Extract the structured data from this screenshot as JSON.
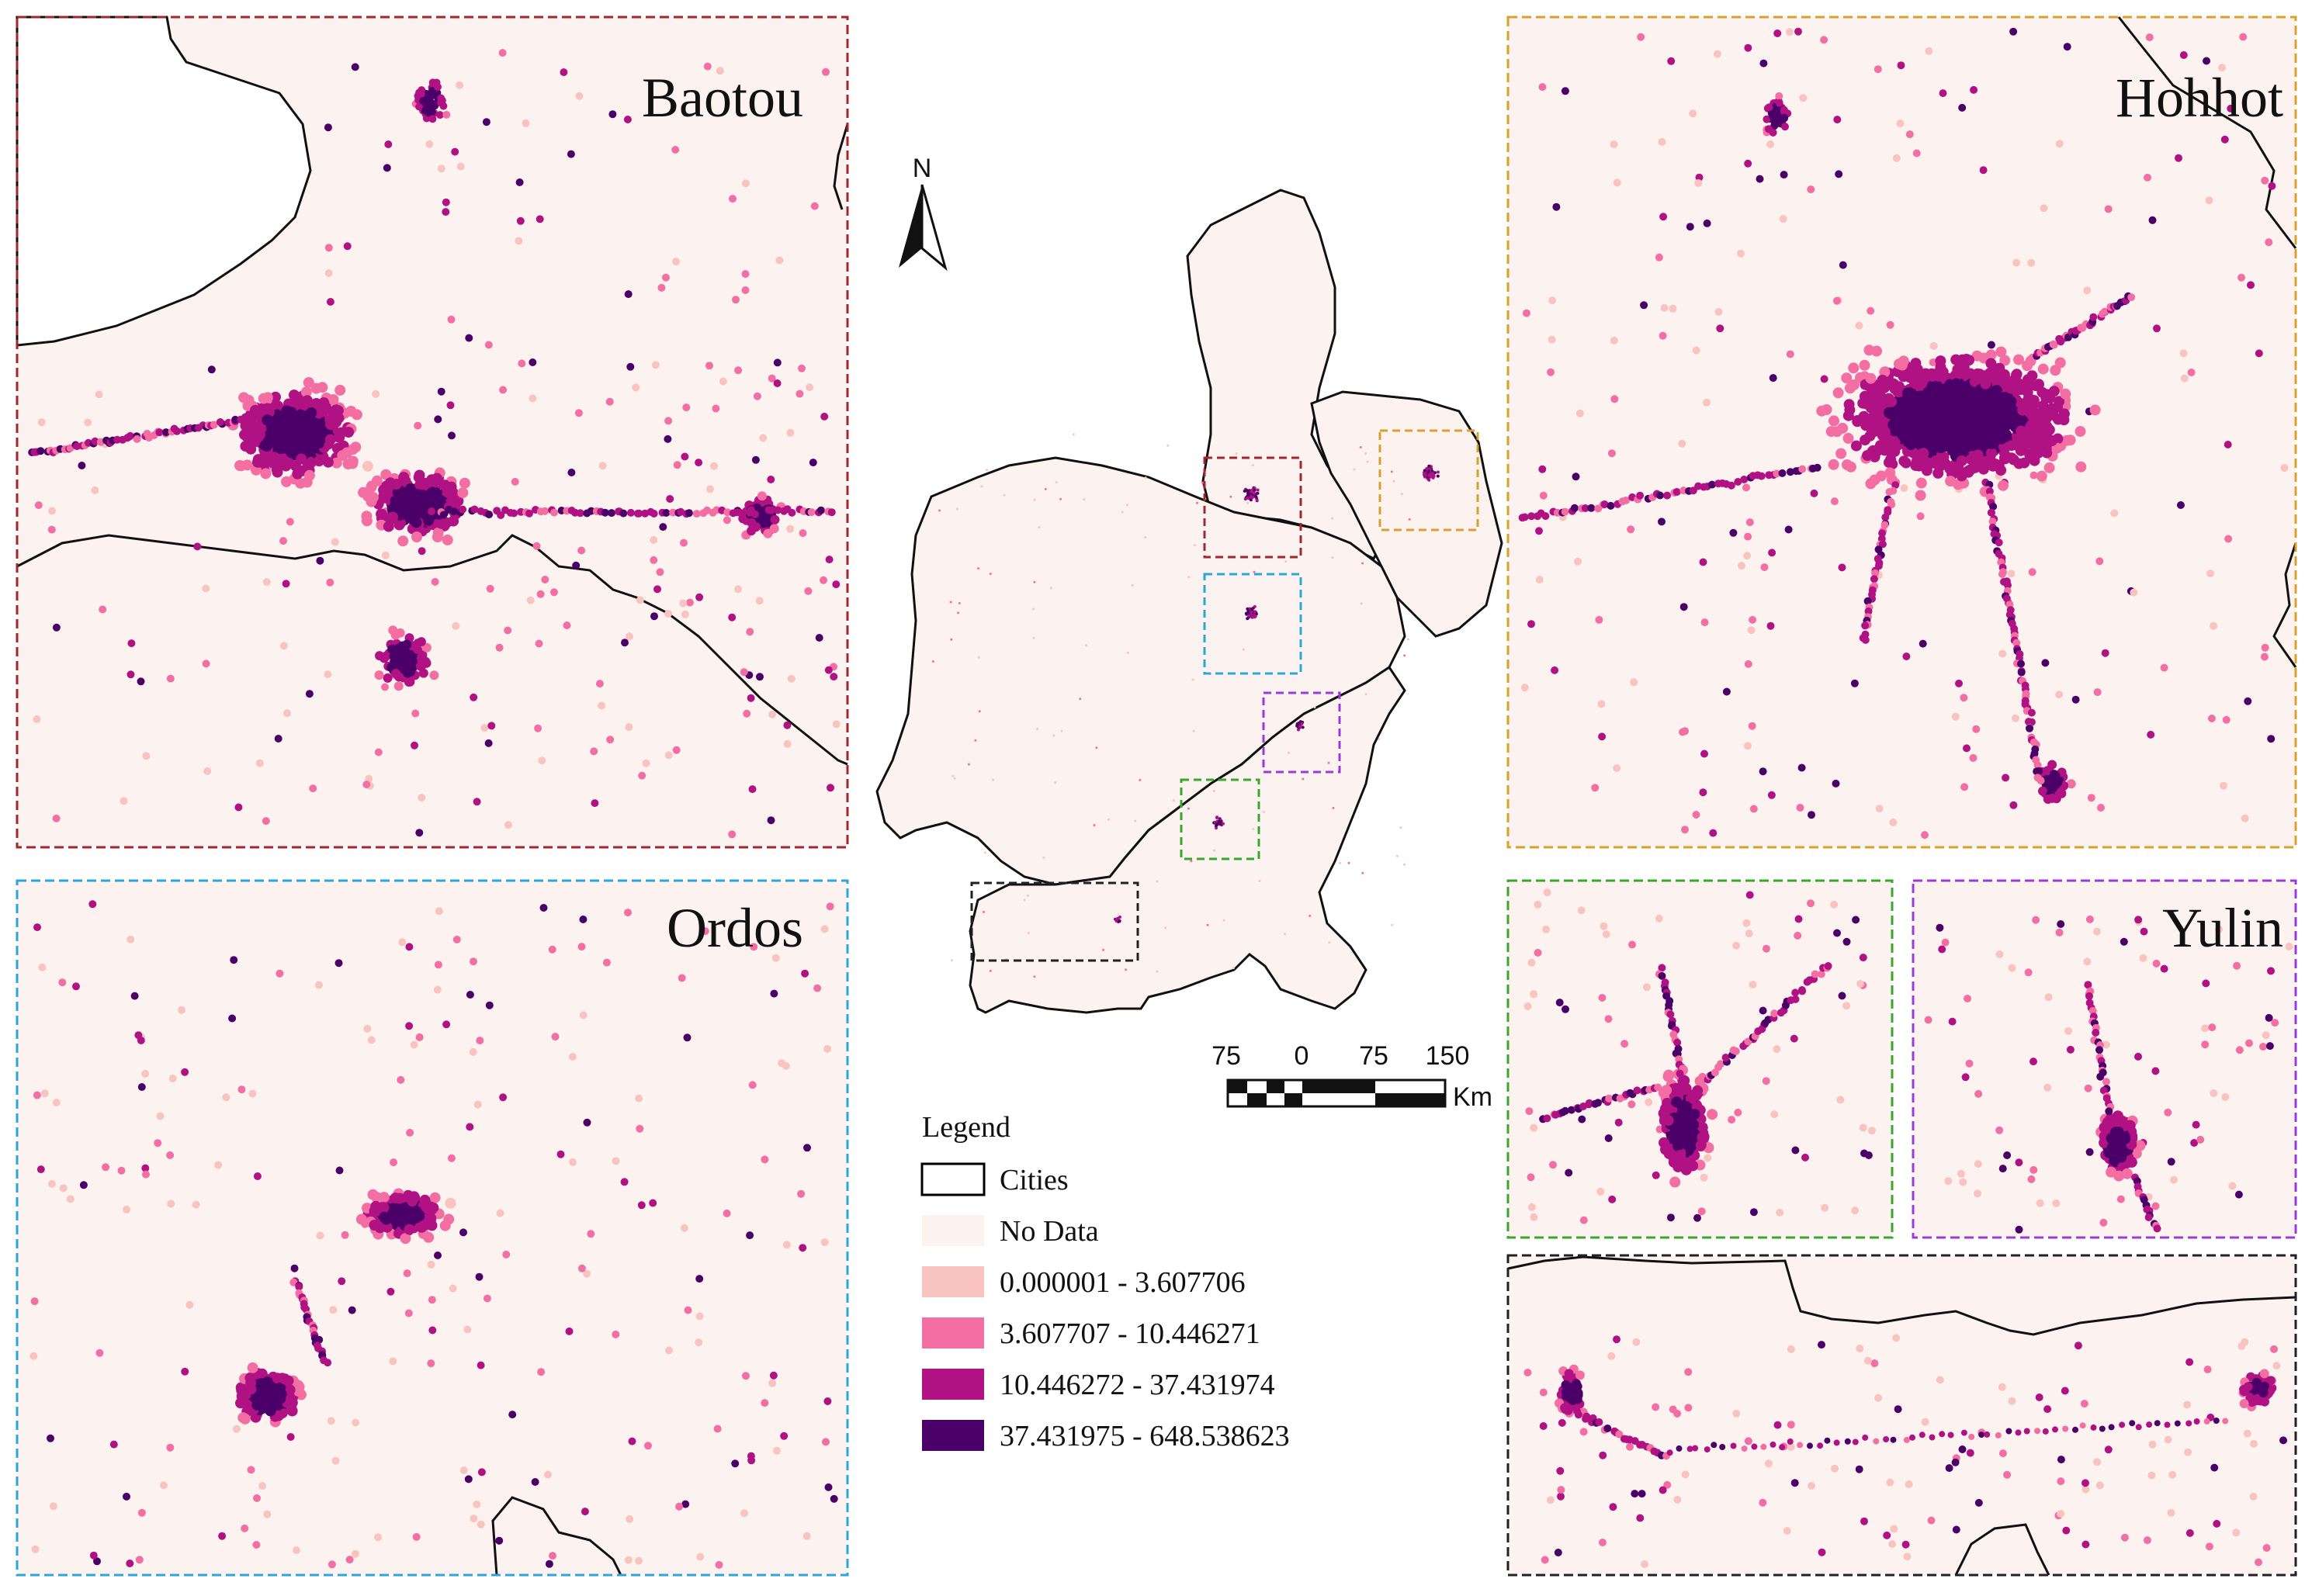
{
  "panels": [
    {
      "key": "baotou",
      "label": "Baotou",
      "frame_color": "#a0282d"
    },
    {
      "key": "hohhot",
      "label": "Hohhot",
      "frame_color": "#d9a02a"
    },
    {
      "key": "ordos",
      "label": "Ordos",
      "frame_color": "#2aa6d9"
    },
    {
      "key": "yulin",
      "label": "Yulin",
      "frame_color": "#9b3ad9"
    },
    {
      "key": "green",
      "label": "",
      "frame_color": "#3aa62a"
    },
    {
      "key": "black",
      "label": "",
      "frame_color": "#222222"
    }
  ],
  "north_arrow": {
    "label": "N"
  },
  "scale_bar": {
    "ticks": [
      "75",
      "0",
      "75",
      "150"
    ],
    "unit": "Km"
  },
  "legend": {
    "title": "Legend",
    "items": [
      {
        "label": "Cities",
        "swatch": "outline",
        "color": "#000000"
      },
      {
        "label": "No Data",
        "swatch": "fill",
        "color": "#fcf2f0"
      },
      {
        "label": "0.000001 - 3.607706",
        "swatch": "fill",
        "color": "#f9c4c0"
      },
      {
        "label": "3.607707 - 10.446271",
        "swatch": "fill",
        "color": "#f26ea3"
      },
      {
        "label": "10.446272 - 37.431974",
        "swatch": "fill",
        "color": "#b01283"
      },
      {
        "label": "37.431975 - 648.538623",
        "swatch": "fill",
        "color": "#4a0068"
      }
    ]
  },
  "colors": {
    "background": "#fcf2f0",
    "class1": "#f9c4c0",
    "class2": "#f26ea3",
    "class3": "#b01283",
    "class4": "#4a0068",
    "boundary": "#111111"
  }
}
